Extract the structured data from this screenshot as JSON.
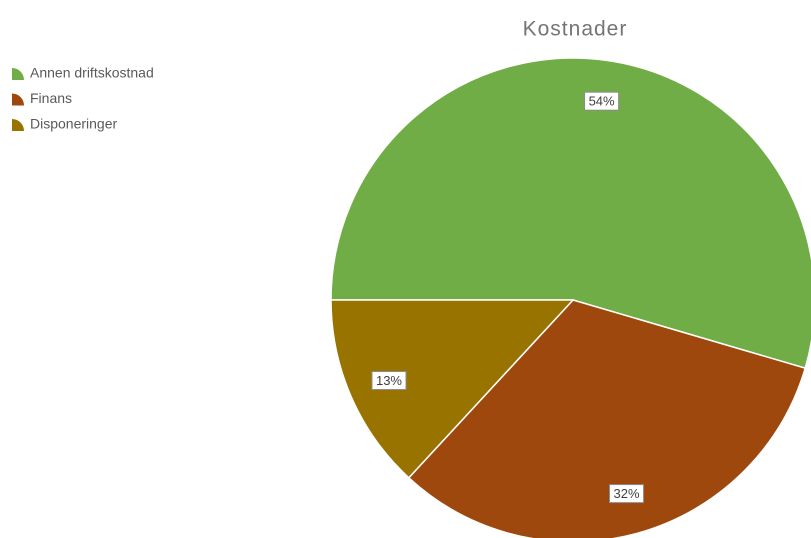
{
  "chart_data": {
    "type": "pie",
    "title": "Kostnader",
    "categories": [
      "Annen driftskostnad",
      "Finans",
      "Disponeringer"
    ],
    "values": [
      54,
      32,
      13
    ],
    "value_labels": [
      "54%",
      "32%",
      "13%"
    ],
    "colors": [
      "#70ad47",
      "#9e480e",
      "#997300"
    ],
    "legend": "top-left"
  }
}
